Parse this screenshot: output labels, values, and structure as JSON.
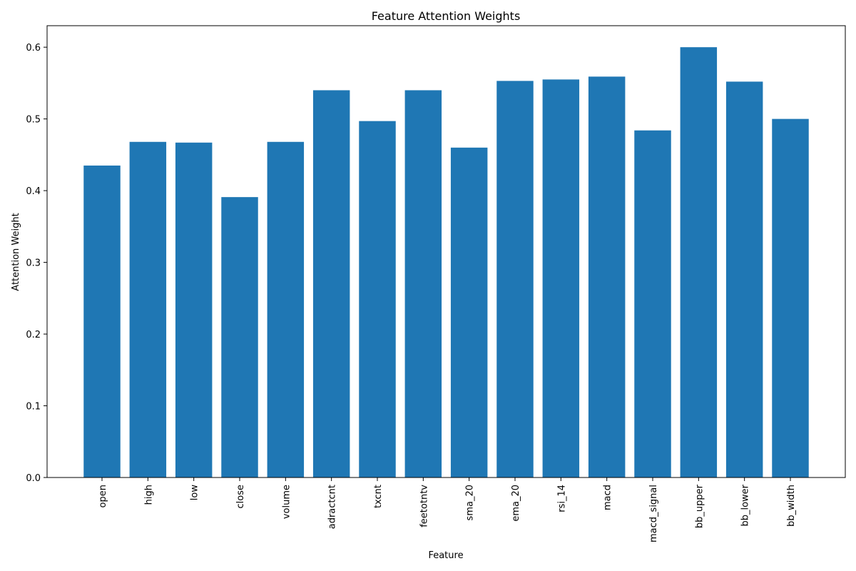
{
  "chart_data": {
    "type": "bar",
    "title": "Feature Attention Weights",
    "xlabel": "Feature",
    "ylabel": "Attention Weight",
    "categories": [
      "open",
      "high",
      "low",
      "close",
      "volume",
      "adractcnt",
      "txcnt",
      "feetotntv",
      "sma_20",
      "ema_20",
      "rsi_14",
      "macd",
      "macd_signal",
      "bb_upper",
      "bb_lower",
      "bb_width"
    ],
    "values": [
      0.435,
      0.468,
      0.467,
      0.391,
      0.468,
      0.54,
      0.497,
      0.54,
      0.46,
      0.553,
      0.555,
      0.559,
      0.484,
      0.6,
      0.552,
      0.5
    ],
    "ylim": [
      0,
      0.63
    ],
    "yticks": [
      "0.0",
      "0.1",
      "0.2",
      "0.3",
      "0.4",
      "0.5",
      "0.6"
    ],
    "ytick_values": [
      0,
      0.1,
      0.2,
      0.3,
      0.4,
      0.5,
      0.6
    ],
    "grid": false,
    "bar_color": "#1f77b4"
  }
}
